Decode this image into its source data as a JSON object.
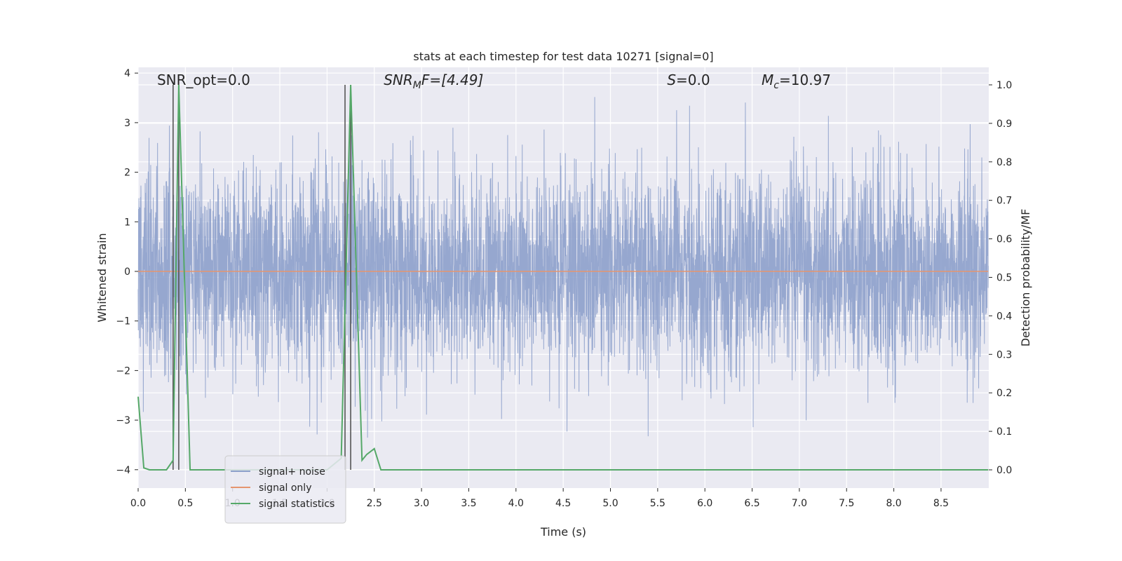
{
  "chart_data": {
    "type": "line",
    "title": "stats at each timestep for test data 10271 [signal=0]",
    "xlabel": "Time (s)",
    "ylabel_left": "Whitened strain",
    "ylabel_right": "Detection probability/MF",
    "xlim": [
      0,
      9.0
    ],
    "ylim_left": [
      -4.4,
      4.2
    ],
    "ylim_right": [
      -0.05,
      1.04
    ],
    "grid": true,
    "x_ticks": [
      "0.0",
      "0.5",
      "1.0",
      "1.5",
      "2.0",
      "2.5",
      "3.0",
      "3.5",
      "4.0",
      "4.5",
      "5.0",
      "5.5",
      "6.0",
      "6.5",
      "7.0",
      "7.5",
      "8.0",
      "8.5"
    ],
    "y_left_ticks": [
      "−4",
      "−3",
      "−2",
      "−1",
      "0",
      "1",
      "2",
      "3",
      "4"
    ],
    "y_right_ticks": [
      "0.0",
      "0.1",
      "0.2",
      "0.3",
      "0.4",
      "0.5",
      "0.6",
      "0.7",
      "0.8",
      "0.9",
      "1.0"
    ],
    "annotations": [
      {
        "prefix": "SNR_opt",
        "sub": "",
        "suffix": "=0.0",
        "italic": false,
        "x": 0.2
      },
      {
        "prefix": "SNR",
        "sub": "M",
        "suffix": "F=[4.49]",
        "italic": true,
        "x": 2.6
      },
      {
        "prefix": "S",
        "sub": "",
        "suffix": "=0.0",
        "italic": true,
        "x": 5.6
      },
      {
        "prefix": "M",
        "sub": "c",
        "suffix": "=10.97",
        "italic": true,
        "x": 6.6
      }
    ],
    "vertical_lines": [
      0.37,
      0.43,
      2.19,
      2.25
    ],
    "series": [
      {
        "name": "signal+ noise",
        "color": "#8da0cb",
        "axis": "left",
        "description_values": "dense white-noise strain, approx range -4 to 4",
        "typical_std": 1.0
      },
      {
        "name": "signal only",
        "color": "#e5956f",
        "axis": "left",
        "x": [
          0.0,
          9.0
        ],
        "y": [
          0.0,
          0.0
        ]
      },
      {
        "name": "signal statistics",
        "color": "#55a868",
        "axis": "right",
        "x": [
          0.0,
          0.06,
          0.12,
          0.3,
          0.37,
          0.43,
          0.55,
          2.0,
          2.15,
          2.25,
          2.37,
          2.42,
          2.5,
          2.57,
          2.62,
          9.0
        ],
        "y": [
          0.19,
          0.005,
          0.0,
          0.0,
          0.025,
          1.0,
          0.0,
          0.0,
          0.03,
          1.0,
          0.025,
          0.04,
          0.055,
          0.0,
          0.0,
          0.0
        ]
      }
    ],
    "legend": {
      "position": "lower-left",
      "entries": [
        "signal+ noise",
        "signal only",
        "signal statistics"
      ]
    }
  },
  "colors": {
    "background": "#ffffff",
    "plot_bg": "#eaeaf2",
    "grid": "#ffffff",
    "vline": "#555555"
  }
}
